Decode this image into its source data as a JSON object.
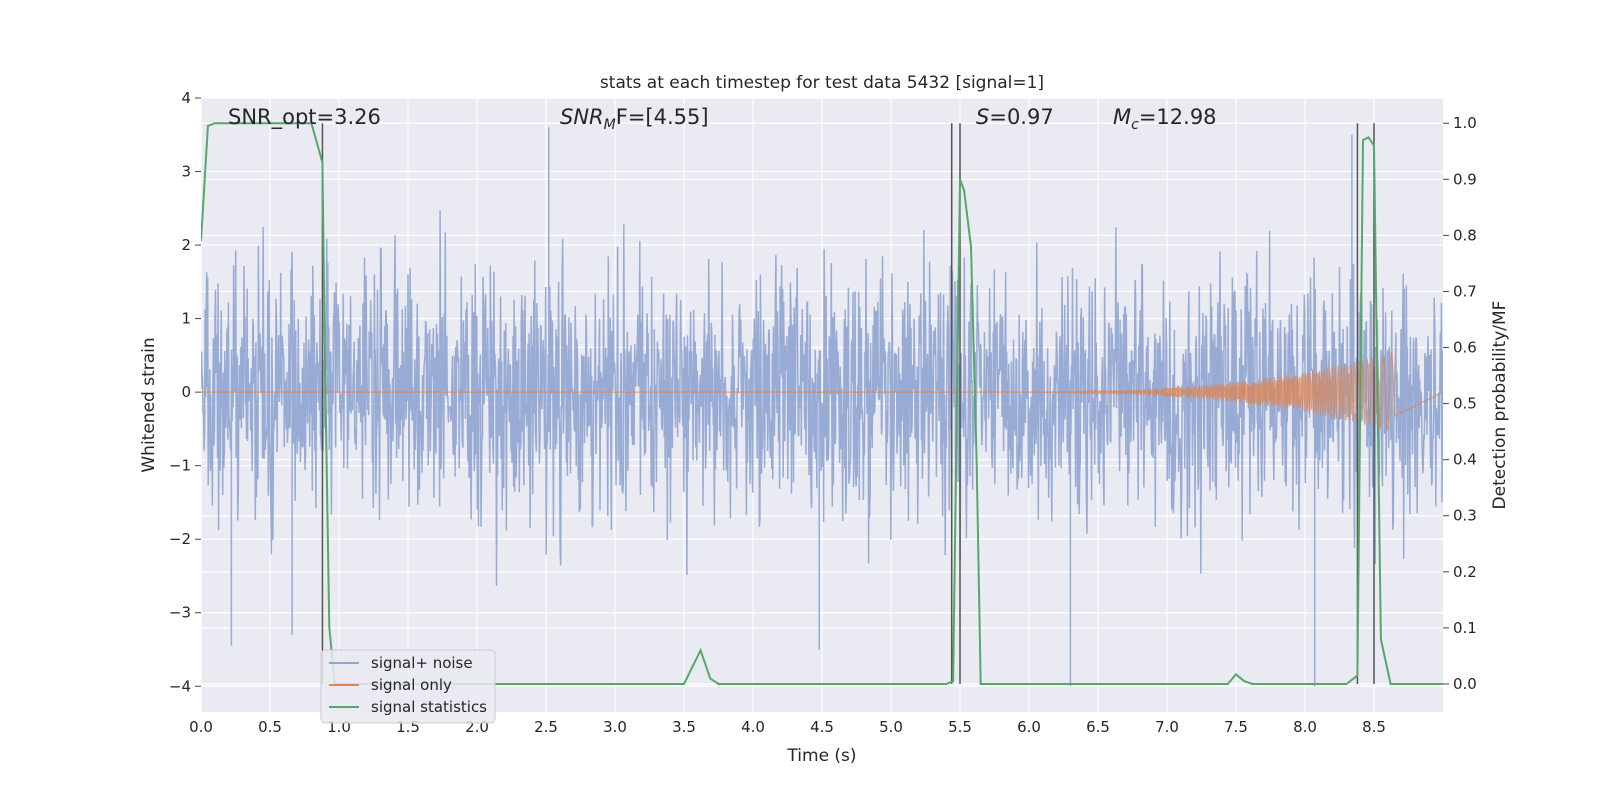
{
  "chart_data": {
    "type": "line",
    "title": "stats at each timestep for test data 5432 [signal=1]",
    "xlabel": "Time (s)",
    "ylabel_left": "Whitened strain",
    "ylabel_right": "Detection probability/MF",
    "xlim": [
      0.0,
      9.0
    ],
    "ylim_left": [
      -4.35,
      4.0
    ],
    "ylim_right": [
      -0.05,
      1.045
    ],
    "x_ticks": [
      "0.0",
      "0.5",
      "1.0",
      "1.5",
      "2.0",
      "2.5",
      "3.0",
      "3.5",
      "4.0",
      "4.5",
      "5.0",
      "5.5",
      "6.0",
      "6.5",
      "7.0",
      "7.5",
      "8.0",
      "8.5"
    ],
    "y_ticks_left": [
      "4",
      "3",
      "2",
      "1",
      "0",
      "−1",
      "−2",
      "−3",
      "−4"
    ],
    "y_ticks_right": [
      "1.0",
      "0.9",
      "0.8",
      "0.7",
      "0.6",
      "0.5",
      "0.4",
      "0.3",
      "0.2",
      "0.1",
      "0.0"
    ],
    "grid": true,
    "legend_position": "lower-left",
    "annotations": {
      "snr_opt": "SNR_opt=3.26",
      "snr_mf_main": "SNR",
      "snr_mf_sub": "M",
      "snr_mf_rest": "F=[4.55]",
      "s_main": "S",
      "s_rest": "=0.97",
      "mc_main": "M",
      "mc_sub": "c",
      "mc_rest": "=12.98"
    },
    "series": [
      {
        "name": "signal+ noise",
        "color": "#8fa4d0",
        "description_values": "whitened noise, roughly gaussian, amplitude mostly within [-3.5, 3.7]"
      },
      {
        "name": "signal only",
        "color": "#dd8452",
        "x_start": 5.5,
        "x_end": 8.65,
        "amplitude_start": 0.0,
        "amplitude_end": 0.55
      },
      {
        "name": "signal statistics",
        "color": "#55a868",
        "x": [
          0.0,
          0.05,
          0.1,
          0.2,
          0.3,
          0.4,
          0.5,
          0.6,
          0.7,
          0.8,
          0.88,
          0.9,
          0.93,
          0.97,
          1.0,
          1.5,
          2.0,
          2.5,
          3.0,
          3.5,
          3.56,
          3.62,
          3.69,
          3.75,
          4.0,
          4.5,
          5.0,
          5.4,
          5.45,
          5.5,
          5.53,
          5.58,
          5.62,
          5.65,
          6.0,
          6.5,
          7.0,
          7.44,
          7.5,
          7.56,
          7.62,
          8.0,
          8.3,
          8.38,
          8.42,
          8.46,
          8.5,
          8.55,
          8.62,
          8.68,
          9.0
        ],
        "y": [
          0.79,
          0.995,
          1.0,
          1.0,
          1.0,
          1.0,
          1.0,
          1.0,
          1.0,
          1.0,
          0.93,
          0.55,
          0.1,
          0.0,
          0.0,
          0.0,
          0.0,
          0.0,
          0.0,
          0.0,
          0.03,
          0.06,
          0.01,
          0.0,
          0.0,
          0.0,
          0.0,
          0.0,
          0.005,
          0.9,
          0.88,
          0.78,
          0.4,
          0.0,
          0.0,
          0.0,
          0.0,
          0.0,
          0.017,
          0.005,
          0.0,
          0.0,
          0.0,
          0.015,
          0.97,
          0.975,
          0.96,
          0.08,
          0.0,
          0.0,
          0.0
        ]
      }
    ],
    "vertical_lines_x": [
      0.88,
      5.44,
      5.5,
      8.38,
      8.5
    ],
    "noise_spikes": [
      {
        "x": 0.22,
        "y": -3.45
      },
      {
        "x": 0.66,
        "y": -3.3
      },
      {
        "x": 2.52,
        "y": 3.6
      },
      {
        "x": 4.48,
        "y": -3.5
      },
      {
        "x": 6.3,
        "y": -4.0
      },
      {
        "x": 8.07,
        "y": -4.0
      },
      {
        "x": 8.34,
        "y": 3.5
      }
    ]
  }
}
